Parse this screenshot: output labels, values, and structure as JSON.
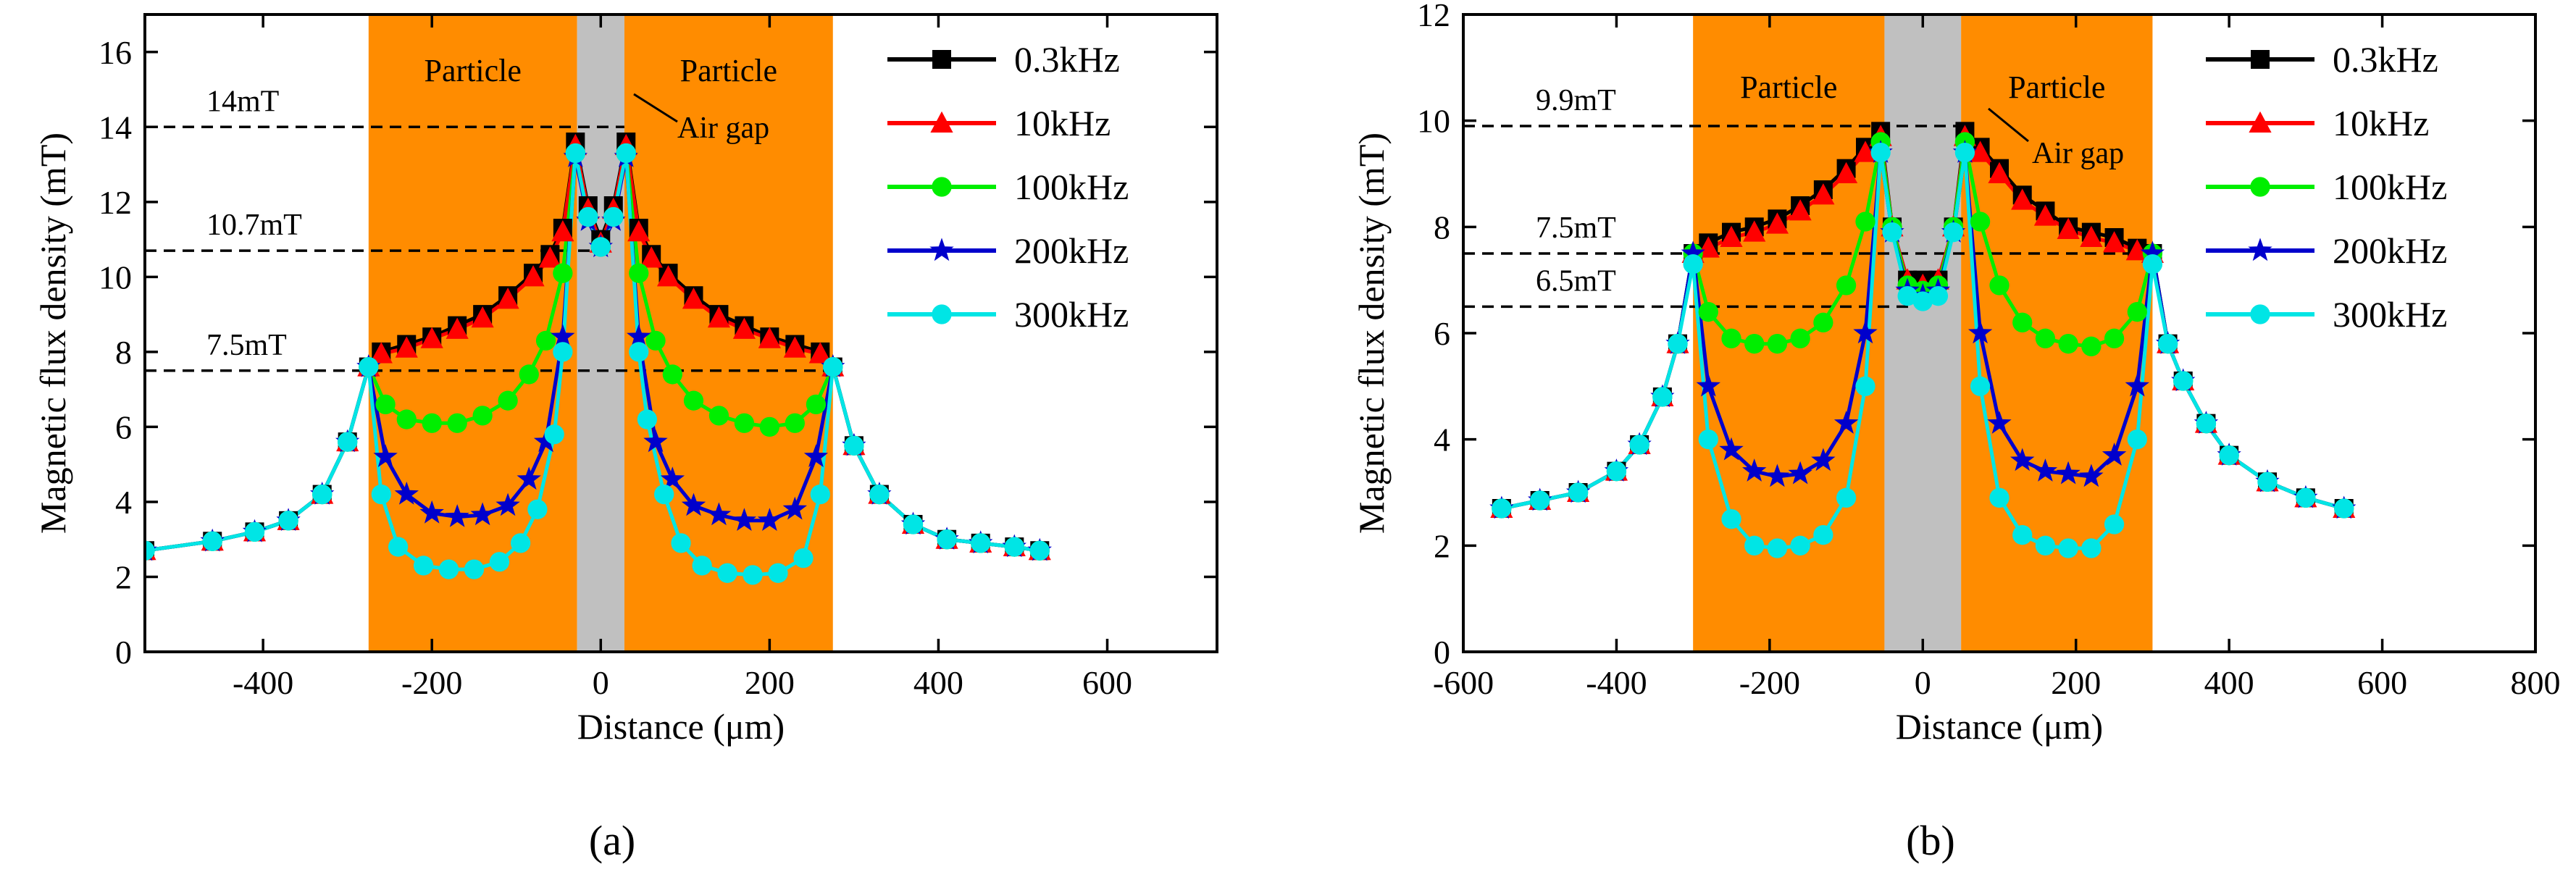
{
  "figure": {
    "panel_labels": [
      "(a)",
      "(b)"
    ]
  },
  "chart_data": [
    {
      "type": "line",
      "panel": "(a)",
      "xlabel": "Distance (μm)",
      "ylabel": "Magnetic flux density (mT)",
      "xlim": [
        -540,
        730
      ],
      "ylim": [
        0,
        17
      ],
      "xticks": [
        -400,
        -200,
        0,
        200,
        400,
        600
      ],
      "yticks": [
        0,
        2,
        4,
        6,
        8,
        10,
        12,
        14,
        16
      ],
      "grid": false,
      "legend": "top-right",
      "regions": [
        {
          "label": "Particle",
          "x0": -275,
          "x1": -28,
          "color": "#ff8c00"
        },
        {
          "label": "",
          "x0": -28,
          "x1": 28,
          "color": "#c0c0c0"
        },
        {
          "label": "Particle",
          "x0": 28,
          "x1": 275,
          "color": "#ff8c00"
        }
      ],
      "annotations": [
        {
          "text": "Air gap",
          "x": 20,
          "y": 13.9
        }
      ],
      "reference_lines": [
        {
          "label": "14mT",
          "y": 14,
          "x0": -540,
          "x1": 28
        },
        {
          "label": "10.7mT",
          "y": 10.7,
          "x0": -540,
          "x1": 0
        },
        {
          "label": "7.5mT",
          "y": 7.5,
          "x0": -540,
          "x1": 280
        }
      ],
      "series": [
        {
          "name": "0.3kHz",
          "color": "#000000",
          "marker": "square",
          "x": [
            -540,
            -460,
            -410,
            -370,
            -330,
            -300,
            -275,
            -260,
            -230,
            -200,
            -170,
            -140,
            -110,
            -80,
            -60,
            -45,
            -30,
            -15,
            0,
            15,
            30,
            45,
            60,
            80,
            110,
            140,
            170,
            200,
            230,
            260,
            275,
            300,
            330,
            370,
            410,
            450,
            490,
            520
          ],
          "y": [
            2.7,
            2.95,
            3.2,
            3.5,
            4.2,
            5.6,
            7.6,
            8.0,
            8.2,
            8.4,
            8.7,
            9.0,
            9.5,
            10.1,
            10.6,
            11.3,
            13.6,
            11.9,
            11.0,
            11.9,
            13.6,
            11.3,
            10.6,
            10.1,
            9.5,
            9.0,
            8.7,
            8.4,
            8.2,
            8.0,
            7.6,
            5.5,
            4.2,
            3.4,
            3.0,
            2.9,
            2.8,
            2.7
          ]
        },
        {
          "name": "10kHz",
          "color": "#ff0000",
          "marker": "triangle",
          "x": [
            -540,
            -460,
            -410,
            -370,
            -330,
            -300,
            -275,
            -260,
            -230,
            -200,
            -170,
            -140,
            -110,
            -80,
            -60,
            -45,
            -30,
            -15,
            0,
            15,
            30,
            45,
            60,
            80,
            110,
            140,
            170,
            200,
            230,
            260,
            275,
            300,
            330,
            370,
            410,
            450,
            490,
            520
          ],
          "y": [
            2.7,
            2.95,
            3.2,
            3.5,
            4.2,
            5.6,
            7.6,
            7.95,
            8.1,
            8.35,
            8.6,
            8.9,
            9.4,
            10.0,
            10.5,
            11.2,
            13.5,
            11.8,
            10.9,
            11.8,
            13.5,
            11.2,
            10.5,
            10.0,
            9.4,
            8.9,
            8.6,
            8.35,
            8.1,
            7.95,
            7.6,
            5.5,
            4.2,
            3.4,
            3.0,
            2.9,
            2.8,
            2.7
          ]
        },
        {
          "name": "100kHz",
          "color": "#00ee00",
          "marker": "circle",
          "x": [
            -540,
            -460,
            -410,
            -370,
            -330,
            -300,
            -275,
            -255,
            -230,
            -200,
            -170,
            -140,
            -110,
            -85,
            -65,
            -45,
            -30,
            -15,
            0,
            15,
            30,
            45,
            65,
            85,
            110,
            140,
            170,
            200,
            230,
            255,
            275,
            300,
            330,
            370,
            410,
            450,
            490,
            520
          ],
          "y": [
            2.7,
            2.95,
            3.2,
            3.5,
            4.2,
            5.6,
            7.6,
            6.6,
            6.2,
            6.1,
            6.1,
            6.3,
            6.7,
            7.4,
            8.3,
            10.1,
            13.3,
            11.6,
            10.8,
            11.6,
            13.3,
            10.1,
            8.3,
            7.4,
            6.7,
            6.3,
            6.1,
            6.0,
            6.1,
            6.6,
            7.6,
            5.5,
            4.2,
            3.4,
            3.0,
            2.9,
            2.8,
            2.7
          ]
        },
        {
          "name": "200kHz",
          "color": "#0000cc",
          "marker": "star",
          "x": [
            -540,
            -460,
            -410,
            -370,
            -330,
            -300,
            -275,
            -255,
            -230,
            -200,
            -170,
            -140,
            -110,
            -85,
            -65,
            -45,
            -30,
            -15,
            0,
            15,
            30,
            45,
            65,
            85,
            110,
            140,
            170,
            200,
            230,
            255,
            275,
            300,
            330,
            370,
            410,
            450,
            490,
            520
          ],
          "y": [
            2.7,
            2.95,
            3.2,
            3.5,
            4.2,
            5.6,
            7.6,
            5.2,
            4.2,
            3.7,
            3.6,
            3.65,
            3.9,
            4.6,
            5.6,
            8.4,
            13.2,
            11.5,
            10.8,
            11.5,
            13.2,
            8.4,
            5.6,
            4.6,
            3.9,
            3.65,
            3.5,
            3.5,
            3.8,
            5.2,
            7.6,
            5.5,
            4.2,
            3.4,
            3.0,
            2.9,
            2.8,
            2.7
          ]
        },
        {
          "name": "300kHz",
          "color": "#00e5e5",
          "marker": "circle",
          "x": [
            -540,
            -460,
            -410,
            -370,
            -330,
            -300,
            -275,
            -260,
            -240,
            -210,
            -180,
            -150,
            -120,
            -95,
            -75,
            -55,
            -45,
            -30,
            -15,
            0,
            15,
            30,
            45,
            55,
            75,
            95,
            120,
            150,
            180,
            210,
            240,
            260,
            275,
            300,
            330,
            370,
            410,
            450,
            490,
            520
          ],
          "y": [
            2.7,
            2.95,
            3.2,
            3.5,
            4.2,
            5.6,
            7.6,
            4.2,
            2.8,
            2.3,
            2.2,
            2.2,
            2.4,
            2.9,
            3.8,
            5.8,
            8.0,
            13.3,
            11.6,
            10.8,
            11.6,
            13.3,
            8.0,
            6.2,
            4.2,
            2.9,
            2.3,
            2.1,
            2.05,
            2.1,
            2.5,
            4.2,
            7.6,
            5.5,
            4.2,
            3.4,
            3.0,
            2.9,
            2.8,
            2.7
          ]
        }
      ]
    },
    {
      "type": "line",
      "panel": "(b)",
      "xlabel": "Distance (μm)",
      "ylabel": "Magnetic flux density (mT)",
      "xlim": [
        -600,
        800
      ],
      "ylim": [
        0,
        12
      ],
      "xticks": [
        -600,
        -400,
        -200,
        0,
        200,
        400,
        600,
        800
      ],
      "yticks": [
        0,
        2,
        4,
        6,
        8,
        10,
        12
      ],
      "grid": false,
      "legend": "top-right",
      "regions": [
        {
          "label": "Particle",
          "x0": -300,
          "x1": -50,
          "color": "#ff8c00"
        },
        {
          "label": "",
          "x0": -50,
          "x1": 50,
          "color": "#c0c0c0"
        },
        {
          "label": "Particle",
          "x0": 50,
          "x1": 300,
          "color": "#ff8c00"
        }
      ],
      "annotations": [
        {
          "text": "Air gap",
          "x": 50,
          "y": 9.9
        }
      ],
      "reference_lines": [
        {
          "label": "9.9mT",
          "y": 9.9,
          "x0": -600,
          "x1": 55
        },
        {
          "label": "7.5mT",
          "y": 7.5,
          "x0": -600,
          "x1": 300
        },
        {
          "label": "6.5mT",
          "y": 6.5,
          "x0": -600,
          "x1": -10
        }
      ],
      "series": [
        {
          "name": "0.3kHz",
          "color": "#000000",
          "marker": "square",
          "x": [
            -550,
            -500,
            -450,
            -400,
            -370,
            -340,
            -320,
            -300,
            -280,
            -250,
            -220,
            -190,
            -160,
            -130,
            -100,
            -75,
            -55,
            -40,
            -20,
            0,
            20,
            40,
            55,
            75,
            100,
            130,
            160,
            190,
            220,
            250,
            280,
            300,
            320,
            340,
            370,
            400,
            450,
            500,
            550
          ],
          "y": [
            2.7,
            2.85,
            3.0,
            3.4,
            3.9,
            4.8,
            5.8,
            7.5,
            7.7,
            7.9,
            8.0,
            8.15,
            8.4,
            8.7,
            9.1,
            9.5,
            9.8,
            8.0,
            7.0,
            7.0,
            7.0,
            8.0,
            9.8,
            9.5,
            9.1,
            8.6,
            8.3,
            8.0,
            7.9,
            7.8,
            7.6,
            7.5,
            5.8,
            5.1,
            4.3,
            3.7,
            3.2,
            2.9,
            2.7
          ]
        },
        {
          "name": "10kHz",
          "color": "#ff0000",
          "marker": "triangle",
          "x": [
            -550,
            -500,
            -450,
            -400,
            -370,
            -340,
            -320,
            -300,
            -280,
            -250,
            -220,
            -190,
            -160,
            -130,
            -100,
            -75,
            -55,
            -40,
            -20,
            0,
            20,
            40,
            55,
            75,
            100,
            130,
            160,
            190,
            220,
            250,
            280,
            300,
            320,
            340,
            370,
            400,
            450,
            500,
            550
          ],
          "y": [
            2.7,
            2.85,
            3.0,
            3.4,
            3.9,
            4.8,
            5.8,
            7.5,
            7.6,
            7.8,
            7.9,
            8.05,
            8.3,
            8.6,
            9.0,
            9.4,
            9.7,
            8.0,
            7.0,
            6.9,
            7.0,
            8.0,
            9.7,
            9.4,
            9.0,
            8.5,
            8.2,
            7.95,
            7.8,
            7.7,
            7.55,
            7.5,
            5.8,
            5.1,
            4.3,
            3.7,
            3.2,
            2.9,
            2.7
          ]
        },
        {
          "name": "100kHz",
          "color": "#00ee00",
          "marker": "circle",
          "x": [
            -550,
            -500,
            -450,
            -400,
            -370,
            -340,
            -320,
            -300,
            -280,
            -250,
            -220,
            -190,
            -160,
            -130,
            -100,
            -75,
            -55,
            -40,
            -20,
            0,
            20,
            40,
            55,
            75,
            100,
            130,
            160,
            190,
            220,
            250,
            280,
            300,
            320,
            340,
            370,
            400,
            450,
            500,
            550
          ],
          "y": [
            2.7,
            2.85,
            3.0,
            3.4,
            3.9,
            4.8,
            5.8,
            7.5,
            6.4,
            5.9,
            5.8,
            5.8,
            5.9,
            6.2,
            6.9,
            8.1,
            9.6,
            8.0,
            6.9,
            6.8,
            6.9,
            8.0,
            9.6,
            8.1,
            6.9,
            6.2,
            5.9,
            5.8,
            5.75,
            5.9,
            6.4,
            7.5,
            5.8,
            5.1,
            4.3,
            3.7,
            3.2,
            2.9,
            2.7
          ]
        },
        {
          "name": "200kHz",
          "color": "#0000cc",
          "marker": "star",
          "x": [
            -550,
            -500,
            -450,
            -400,
            -370,
            -340,
            -320,
            -300,
            -280,
            -250,
            -220,
            -190,
            -160,
            -130,
            -100,
            -75,
            -55,
            -40,
            -20,
            0,
            20,
            40,
            55,
            75,
            100,
            130,
            160,
            190,
            220,
            250,
            280,
            300,
            320,
            340,
            370,
            400,
            450,
            500,
            550
          ],
          "y": [
            2.7,
            2.85,
            3.0,
            3.4,
            3.9,
            4.8,
            5.8,
            7.5,
            5.0,
            3.8,
            3.4,
            3.3,
            3.35,
            3.6,
            4.3,
            6.0,
            9.4,
            7.9,
            6.8,
            6.7,
            6.8,
            7.9,
            9.4,
            6.0,
            4.3,
            3.6,
            3.4,
            3.35,
            3.3,
            3.7,
            5.0,
            7.5,
            5.8,
            5.1,
            4.3,
            3.7,
            3.2,
            2.9,
            2.7
          ]
        },
        {
          "name": "300kHz",
          "color": "#00e5e5",
          "marker": "circle",
          "x": [
            -550,
            -500,
            -450,
            -400,
            -370,
            -340,
            -320,
            -300,
            -280,
            -250,
            -220,
            -190,
            -160,
            -130,
            -100,
            -75,
            -55,
            -40,
            -20,
            0,
            20,
            40,
            55,
            75,
            100,
            130,
            160,
            190,
            220,
            250,
            280,
            300,
            320,
            340,
            370,
            400,
            450,
            500,
            550
          ],
          "y": [
            2.7,
            2.85,
            3.0,
            3.4,
            3.9,
            4.8,
            5.8,
            7.3,
            4.0,
            2.5,
            2.0,
            1.95,
            2.0,
            2.2,
            2.9,
            5.0,
            9.4,
            7.9,
            6.7,
            6.6,
            6.7,
            7.9,
            9.4,
            5.0,
            2.9,
            2.2,
            2.0,
            1.95,
            1.95,
            2.4,
            4.0,
            7.3,
            5.8,
            5.1,
            4.3,
            3.7,
            3.2,
            2.9,
            2.7
          ]
        }
      ]
    }
  ]
}
